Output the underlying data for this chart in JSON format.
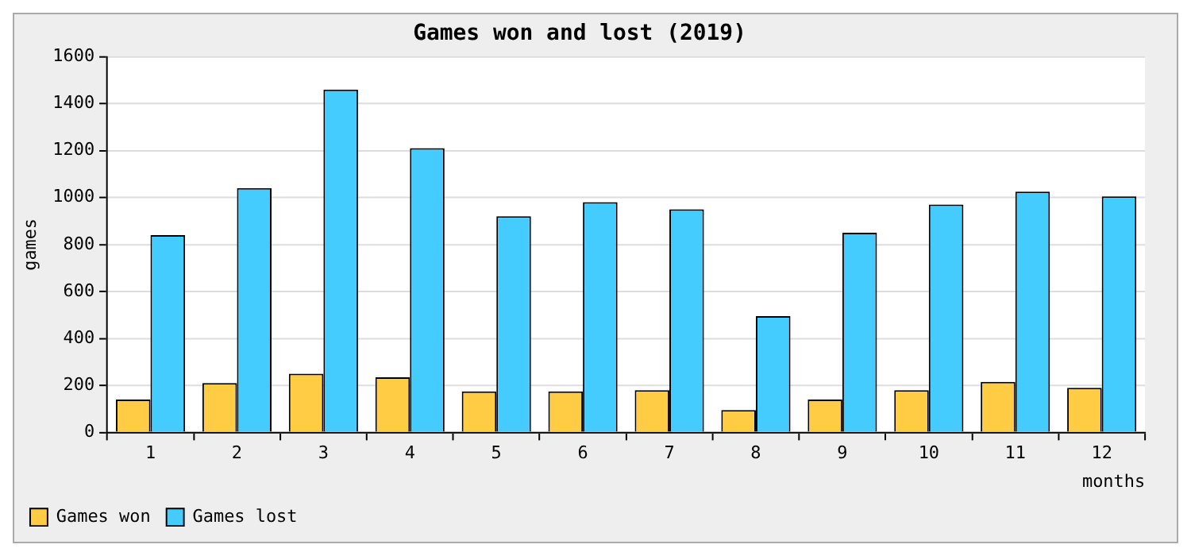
{
  "chart_data": {
    "type": "bar",
    "title": "Games won and lost (2019)",
    "xlabel": "months",
    "ylabel": "games",
    "categories": [
      "1",
      "2",
      "3",
      "4",
      "5",
      "6",
      "7",
      "8",
      "9",
      "10",
      "11",
      "12"
    ],
    "series": [
      {
        "name": "Games won",
        "color": "#ffcc44",
        "values": [
          140,
          210,
          250,
          235,
          175,
          175,
          180,
          95,
          140,
          180,
          215,
          190
        ]
      },
      {
        "name": "Games lost",
        "color": "#44ccff",
        "values": [
          840,
          1040,
          1460,
          1210,
          920,
          980,
          950,
          495,
          850,
          970,
          1025,
          1005
        ]
      }
    ],
    "ylim": [
      0,
      1600
    ],
    "yticks": [
      0,
      200,
      400,
      600,
      800,
      1000,
      1200,
      1400,
      1600
    ],
    "grid": "y",
    "legend": "bottom left"
  }
}
